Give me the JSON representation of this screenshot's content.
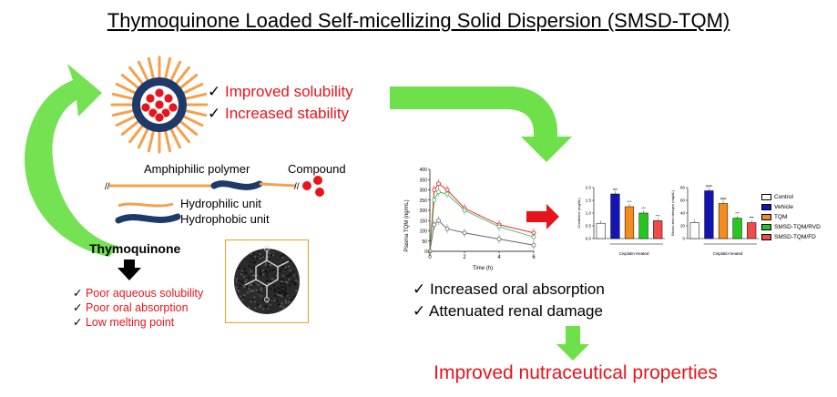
{
  "title": "Thymoquinone Loaded Self-micellizing Solid Dispersion (SMSD-TQM)",
  "micelle_benefits": [
    "Improved solubility",
    "Increased stability"
  ],
  "labels": {
    "amphiphilic_polymer": "Amphiphilic polymer",
    "compound": "Compound",
    "hydrophilic_unit": "Hydrophilic unit",
    "hydrophobic_unit": "Hydrophobic unit",
    "thymoquinone": "Thymoquinone"
  },
  "tqm_drawbacks": [
    "Poor aqueous solubility",
    "Poor oral absorption",
    "Low melting point"
  ],
  "outcomes": [
    "Increased oral absorption",
    "Attenuated renal damage"
  ],
  "conclusion": "Improved nutraceutical properties",
  "check_mark": "✓",
  "colors": {
    "arrow_green": "#6ee04a",
    "text_red": "#e8141b",
    "micelle_orange": "#f5a04a",
    "micelle_navy": "#1e3a6b",
    "compound_red": "#e8141b"
  },
  "chart_data": [
    {
      "type": "line",
      "ylabel": "Plasma TQM (ng/mL)",
      "xlabel": "Time (h)",
      "xlim": [
        0,
        6
      ],
      "ylim": [
        0,
        400
      ],
      "xticks": [
        "0",
        "2",
        "4",
        "6"
      ],
      "yticks": [
        "0",
        "50",
        "100",
        "150",
        "200",
        "250",
        "300",
        "350",
        "400"
      ],
      "series": [
        {
          "color": "#e8141b",
          "x": [
            0,
            0.25,
            0.5,
            1,
            2,
            4,
            6
          ],
          "y": [
            0,
            300,
            330,
            300,
            210,
            130,
            90
          ]
        },
        {
          "color": "#4caf50",
          "x": [
            0,
            0.25,
            0.5,
            1,
            2,
            4,
            6
          ],
          "y": [
            0,
            250,
            290,
            280,
            200,
            120,
            70
          ]
        },
        {
          "color": "#666666",
          "x": [
            0,
            0.25,
            0.5,
            1,
            2,
            4,
            6
          ],
          "y": [
            0,
            130,
            150,
            110,
            90,
            60,
            30
          ]
        }
      ]
    },
    {
      "type": "bar",
      "ylabel": "Creatinine (mg/dL)",
      "xlabel": "Cisplatin-treated",
      "ylim": [
        0,
        2.0
      ],
      "yticks": [
        "0.0",
        "0.5",
        "1.0",
        "1.5",
        "2.0"
      ],
      "categories": [
        "Control",
        "Vehicle",
        "TQM",
        "SMSD-TQM/RVD",
        "SMSD-TQM/FD"
      ],
      "values": [
        0.6,
        1.75,
        1.25,
        1.0,
        0.7
      ],
      "annotations": [
        "##",
        "***",
        "***",
        "***"
      ]
    },
    {
      "type": "bar",
      "ylabel": "Blood urea nitrogen (mg/dL)",
      "xlabel": "Cisplatin-treated",
      "ylim": [
        0,
        80
      ],
      "yticks": [
        "0",
        "20",
        "40",
        "60",
        "80"
      ],
      "categories": [
        "Control",
        "Vehicle",
        "TQM",
        "SMSD-TQM/RVD",
        "SMSD-TQM/FD"
      ],
      "values": [
        25,
        75,
        55,
        32,
        25
      ],
      "annotations": [
        "###",
        "###",
        "***",
        "***",
        "***"
      ]
    }
  ],
  "legend": [
    {
      "label": "Control",
      "color": "#ffffff"
    },
    {
      "label": "Vehicle",
      "color": "#1414b4"
    },
    {
      "label": "TQM",
      "color": "#f58c1e"
    },
    {
      "label": "SMSD-TQM/RVD",
      "color": "#22c81e"
    },
    {
      "label": "SMSD-TQM/FD",
      "color": "#f04b4b"
    }
  ]
}
